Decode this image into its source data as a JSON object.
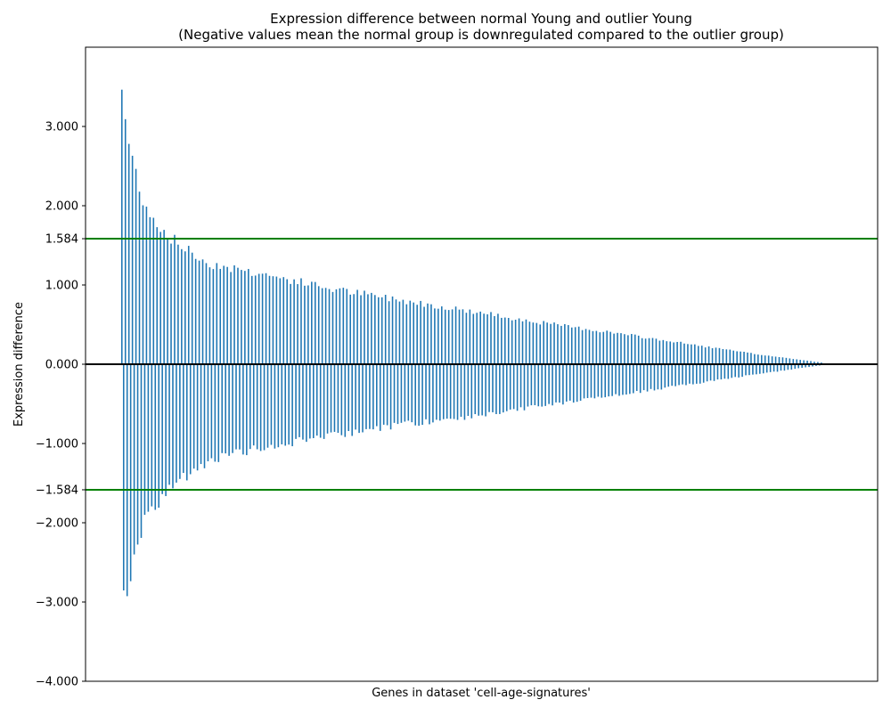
{
  "chart_data": {
    "type": "bar",
    "title": "Expression difference between normal Young and outlier Young",
    "subtitle": "(Negative values mean the normal group is downregulated compared to the outlier group)",
    "xlabel": "Genes in dataset 'cell-age-signatures'",
    "ylabel": "Expression difference",
    "ylim": [
      -4.0,
      4.0
    ],
    "yticks": [
      -4.0,
      -3.0,
      -2.0,
      -1.584,
      -1.0,
      0.0,
      1.0,
      1.584,
      2.0,
      3.0
    ],
    "ytick_labels": [
      "−4.000",
      "−3.000",
      "−2.000",
      "−1.584",
      "−1.000",
      "0.000",
      "1.000",
      "1.584",
      "2.000",
      "3.000"
    ],
    "reference_lines": [
      {
        "y": 1.584,
        "color": "#008000"
      },
      {
        "y": -1.584,
        "color": "#008000"
      },
      {
        "y": 0.0,
        "color": "#000000"
      }
    ],
    "grid": false,
    "bar_color": "#1f77b4",
    "series": [
      {
        "values": []
      }
    ],
    "envelope_samples": {
      "index_fraction": [
        0.0,
        0.01,
        0.03,
        0.05,
        0.08,
        0.12,
        0.2,
        0.3,
        0.4,
        0.5,
        0.6,
        0.7,
        0.8,
        0.9,
        1.0
      ],
      "positive_max": [
        3.65,
        2.9,
        2.2,
        1.85,
        1.6,
        1.35,
        1.2,
        1.0,
        0.85,
        0.7,
        0.55,
        0.42,
        0.28,
        0.14,
        0.02
      ],
      "negative_min": [
        -3.15,
        -2.9,
        -2.1,
        -1.85,
        -1.55,
        -1.3,
        -1.1,
        -0.95,
        -0.8,
        -0.7,
        -0.55,
        -0.42,
        -0.28,
        -0.14,
        -0.01
      ]
    },
    "n_genes": 400
  }
}
